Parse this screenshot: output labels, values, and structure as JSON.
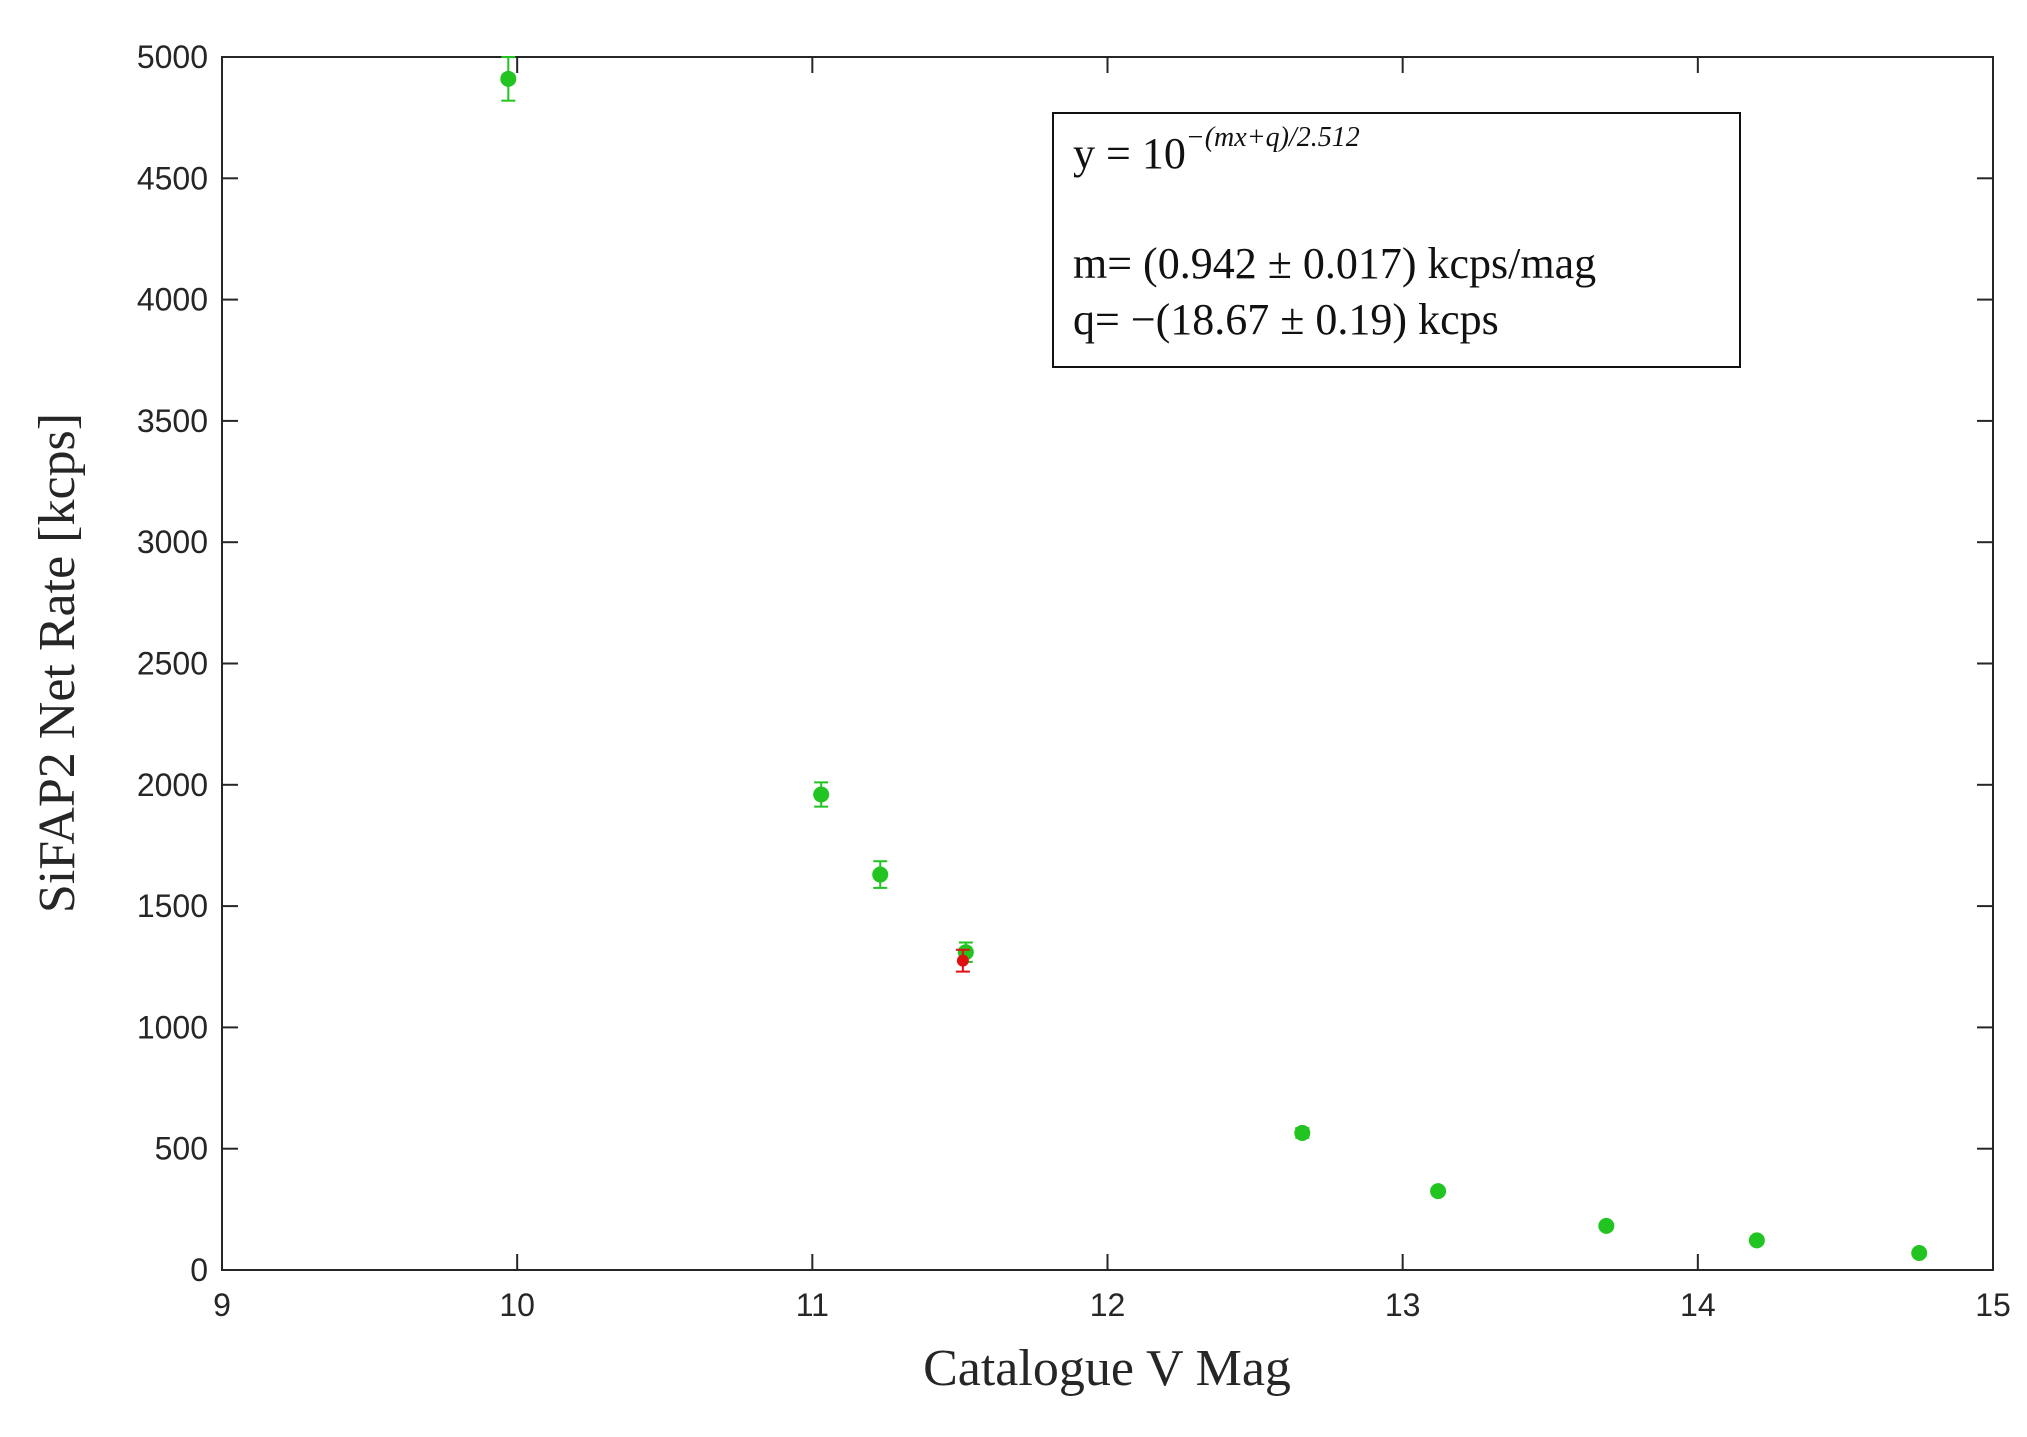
{
  "chart_data": {
    "type": "scatter",
    "xlabel": "Catalogue V Mag",
    "ylabel": "SiFAP2 Net Rate [kcps]",
    "xlim": [
      9,
      15
    ],
    "ylim": [
      0,
      5000
    ],
    "xticks": [
      "9",
      "10",
      "11",
      "12",
      "13",
      "14",
      "15"
    ],
    "yticks": [
      "0",
      "500",
      "1000",
      "1500",
      "2000",
      "2500",
      "3000",
      "3500",
      "4000",
      "4500",
      "5000"
    ],
    "grid": false,
    "series": [
      {
        "color": "#22c422",
        "points": [
          {
            "x": 9.97,
            "y": 4910,
            "err": 90
          },
          {
            "x": 11.03,
            "y": 1960,
            "err": 50
          },
          {
            "x": 11.23,
            "y": 1630,
            "err": 55
          },
          {
            "x": 11.52,
            "y": 1310,
            "err": 40
          },
          {
            "x": 12.66,
            "y": 565,
            "err": 20
          },
          {
            "x": 13.12,
            "y": 325,
            "err": 12
          },
          {
            "x": 13.69,
            "y": 182,
            "err": 8
          },
          {
            "x": 14.2,
            "y": 122,
            "err": 6
          },
          {
            "x": 14.75,
            "y": 70,
            "err": 5
          }
        ]
      },
      {
        "color": "#e01010",
        "points": [
          {
            "x": 11.51,
            "y": 1275,
            "err": 45
          }
        ]
      },
      {
        "type": "line",
        "color": "#000000",
        "fit": {
          "m": 0.942,
          "q": -18.67,
          "divisor": 2.512
        }
      }
    ],
    "legend": {
      "position": "top-right",
      "equation_base": "y = 10",
      "equation_exponent": "−(mx+q)/2.512",
      "m_line": "m= (0.942 ± 0.017) kcps/mag",
      "q_line": "q= −(18.67 ± 0.19) kcps"
    }
  }
}
